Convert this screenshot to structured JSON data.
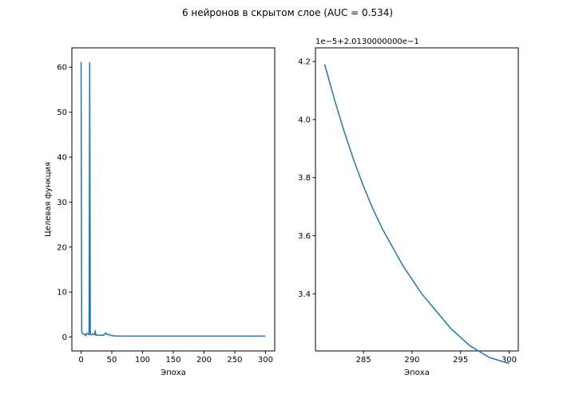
{
  "figure_title": "6 нейронов в скрытом слое (AUC = 0.534)",
  "chart_data": [
    {
      "type": "line",
      "title": "",
      "xlabel": "Эпоха",
      "ylabel": "Целевая функция",
      "xlim": [
        -15,
        315
      ],
      "ylim": [
        -3.1,
        64.3
      ],
      "xticks": [
        0,
        50,
        100,
        150,
        200,
        250,
        300
      ],
      "xtick_labels": [
        "0",
        "50",
        "100",
        "150",
        "200",
        "250",
        "300"
      ],
      "yticks": [
        0,
        10,
        20,
        30,
        40,
        50,
        60
      ],
      "ytick_labels": [
        "0",
        "10",
        "20",
        "30",
        "40",
        "50",
        "60"
      ],
      "grid": false,
      "color": "#1f77b4",
      "series": [
        {
          "x": [
            0,
            1,
            2,
            3,
            4,
            5,
            6,
            7,
            8,
            9,
            10,
            11,
            12,
            13,
            14,
            15,
            16,
            17,
            18,
            19,
            20,
            21,
            22,
            23,
            24,
            25,
            27,
            30,
            33,
            35,
            37,
            40,
            43,
            45,
            48,
            50,
            52,
            55,
            60,
            80,
            100,
            150,
            200,
            250,
            300
          ],
          "y": [
            61.2,
            1.1,
            0.9,
            0.7,
            0.6,
            0.5,
            0.6,
            0.5,
            0.3,
            0.8,
            0.8,
            0.7,
            0.6,
            0.5,
            61.0,
            0.6,
            0.5,
            0.5,
            0.6,
            0.7,
            0.6,
            0.5,
            0.6,
            1.4,
            0.4,
            0.5,
            0.4,
            0.4,
            0.4,
            0.4,
            0.4,
            0.9,
            0.5,
            0.6,
            0.4,
            0.3,
            0.3,
            0.25,
            0.22,
            0.21,
            0.21,
            0.2,
            0.2,
            0.2,
            0.2
          ]
        }
      ]
    },
    {
      "type": "line",
      "title": "",
      "xlabel": "Эпоха",
      "ylabel": "",
      "offset_label": "1e−5+2.0130000000e−1",
      "xlim": [
        280.05,
        300.95
      ],
      "ylim": [
        3.203,
        4.247
      ],
      "xticks": [
        285,
        290,
        295,
        300
      ],
      "xtick_labels": [
        "285",
        "290",
        "295",
        "300"
      ],
      "yticks": [
        3.4,
        3.6,
        3.8,
        4.0,
        4.2
      ],
      "ytick_labels": [
        "3.4",
        "3.6",
        "3.8",
        "4.0",
        "4.2"
      ],
      "grid": false,
      "color": "#1f77b4",
      "series": [
        {
          "x": [
            281,
            282,
            283,
            284,
            285,
            286,
            287,
            288,
            289,
            290,
            291,
            292,
            293,
            294,
            295,
            296,
            297,
            298,
            299,
            300
          ],
          "y": [
            4.19,
            4.07,
            3.96,
            3.86,
            3.77,
            3.69,
            3.62,
            3.56,
            3.5,
            3.45,
            3.4,
            3.36,
            3.32,
            3.28,
            3.25,
            3.22,
            3.2,
            3.18,
            3.17,
            3.16
          ]
        }
      ]
    }
  ]
}
